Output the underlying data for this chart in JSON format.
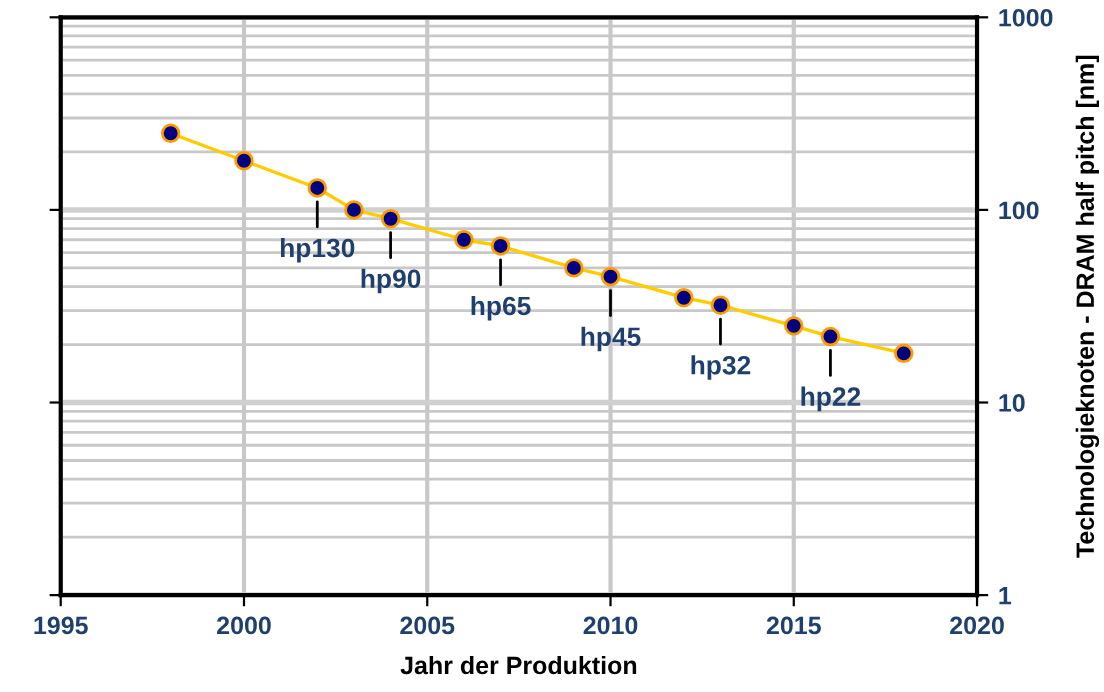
{
  "chart_data": {
    "type": "line",
    "xlabel": "Jahr der Produktion",
    "ylabel": "Technologieknoten - DRAM half pitch [nm]",
    "x": [
      1998,
      2000,
      2002,
      2003,
      2004,
      2006,
      2007,
      2009,
      2010,
      2012,
      2013,
      2015,
      2016,
      2018
    ],
    "series": [
      {
        "color": "#ffcc00",
        "values": [
          250,
          180,
          130,
          100,
          90,
          70,
          65,
          50,
          45,
          35,
          32,
          25,
          22,
          18
        ]
      }
    ],
    "marker": "circle",
    "line_style": "solid",
    "log": "y",
    "xlim": [
      1995,
      2020
    ],
    "xticks": [
      1995,
      2000,
      2005,
      2010,
      2015,
      2020
    ],
    "ylim": [
      1,
      1000
    ],
    "yticks": [
      1,
      10,
      100,
      1000
    ],
    "grid": true,
    "annotations": [
      {
        "text": "hp130",
        "x": 2002,
        "y": 130
      },
      {
        "text": "hp90",
        "x": 2004,
        "y": 90
      },
      {
        "text": "hp65",
        "x": 2007,
        "y": 65
      },
      {
        "text": "hp45",
        "x": 2010,
        "y": 45
      },
      {
        "text": "hp32",
        "x": 2013,
        "y": 32
      },
      {
        "text": "hp22",
        "x": 2016,
        "y": 22
      }
    ]
  }
}
